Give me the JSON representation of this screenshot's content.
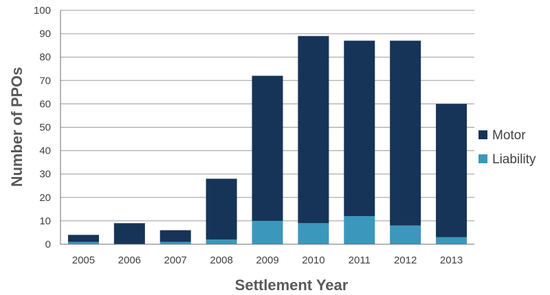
{
  "colors": {
    "Motor": "#163458",
    "Liability": "#3c97bd",
    "gridline": "#9a9a9a",
    "axis": "#6e6e6e"
  },
  "chart_data": {
    "type": "bar",
    "stacked": true,
    "categories": [
      "2005",
      "2006",
      "2007",
      "2008",
      "2009",
      "2010",
      "2011",
      "2012",
      "2013"
    ],
    "series": [
      {
        "name": "Liability",
        "values": [
          1,
          0,
          1,
          2,
          10,
          9,
          12,
          8,
          3
        ]
      },
      {
        "name": "Motor",
        "values": [
          3,
          9,
          5,
          26,
          62,
          80,
          75,
          79,
          57
        ]
      }
    ],
    "xlabel": "Settlement Year",
    "ylabel": "Number of PPOs",
    "ylim": [
      0,
      100
    ],
    "yticks": [
      0,
      10,
      20,
      30,
      40,
      50,
      60,
      70,
      80,
      90,
      100
    ],
    "grid": true,
    "legend": {
      "placement": "right",
      "entries": [
        "Motor",
        "Liability"
      ]
    }
  }
}
